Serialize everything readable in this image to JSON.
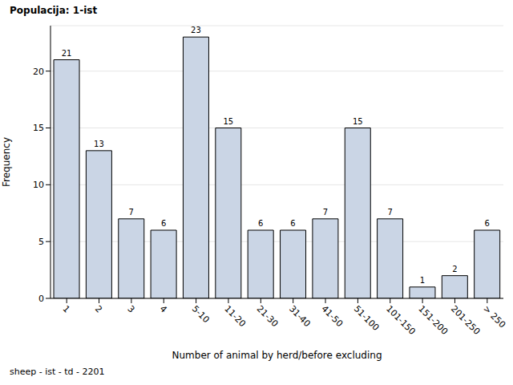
{
  "chart_data": {
    "type": "bar",
    "title": "Populacija: 1-ist",
    "footnote": "sheep - ist - td - 2201",
    "x_label": "Number of animal by herd/before excluding",
    "y_label": "Frequency",
    "categories": [
      "1",
      "2",
      "3",
      "4",
      "5-10",
      "11-20",
      "21-30",
      "31-40",
      "41-50",
      "51-100",
      "101-150",
      "151-200",
      "201-250",
      "> 250"
    ],
    "values": [
      21,
      13,
      7,
      6,
      23,
      15,
      6,
      6,
      7,
      15,
      7,
      1,
      2,
      6
    ],
    "color": "#cad5e5",
    "ylim": [
      0,
      24
    ],
    "yticks": [
      0,
      5,
      10,
      15,
      20
    ],
    "grid": true,
    "data_labels": true
  }
}
